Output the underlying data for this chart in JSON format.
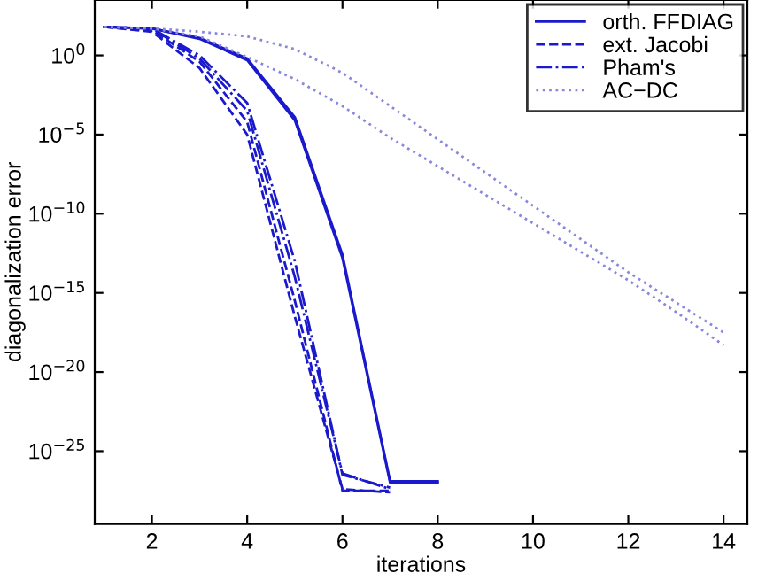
{
  "chart_data": {
    "type": "line",
    "xlabel": "iterations",
    "ylabel": "diagonalization error",
    "log": "y",
    "xlim": [
      0.8,
      14.5
    ],
    "xticks": [
      2,
      4,
      6,
      8,
      10,
      12,
      14
    ],
    "ylim": [
      2.5e-30,
      3160.0
    ],
    "yticks": [
      {
        "value": 1,
        "label": "10$^{0}$"
      },
      {
        "value": 1e-05,
        "label": "10$^{−5}$"
      },
      {
        "value": 1e-10,
        "label": "10$^{−10}$"
      },
      {
        "value": 1e-15,
        "label": "10$^{−15}$"
      },
      {
        "value": 1e-20,
        "label": "10$^{−20}$"
      },
      {
        "value": 1e-25,
        "label": "10$^{−25}$"
      }
    ],
    "grid": false,
    "legend": "top right",
    "marker": "none",
    "series": [
      {
        "name": "orth. FFDIAG",
        "color": "#1a1acc",
        "line_style": "solid",
        "x": [
          1,
          2,
          3,
          4,
          5,
          6,
          7,
          8
        ],
        "values": [
          63.1,
          50.1,
          12.6,
          0.631,
          0.000126,
          2.51e-13,
          1.26e-27,
          1.26e-27
        ]
      },
      {
        "color": "#1a1acc",
        "line_style": "solid",
        "x": [
          1,
          2,
          3,
          4,
          5,
          6,
          7,
          8
        ],
        "values": [
          63.1,
          50.1,
          11.2,
          0.5,
          7.94e-05,
          1.58e-13,
          1e-27,
          1e-27
        ]
      },
      {
        "name": "ext. Jacobi",
        "color": "#1a1acc",
        "line_style": "dashed",
        "x": [
          1,
          2,
          3,
          4,
          5,
          6,
          7
        ],
        "values": [
          63.1,
          39.8,
          0.398,
          6.31e-05,
          3.16e-16,
          3.16e-28,
          3.16e-28
        ]
      },
      {
        "color": "#1a1acc",
        "line_style": "dashed",
        "x": [
          1,
          2,
          3,
          4,
          5,
          6,
          7
        ],
        "values": [
          63.1,
          31.6,
          0.158,
          1e-05,
          3.16e-17,
          3.98e-28,
          2.51e-28
        ]
      },
      {
        "name": "Pham's",
        "color": "#1a1acc",
        "line_style": "dashdot",
        "x": [
          1,
          2,
          3,
          4,
          5,
          6,
          7
        ],
        "values": [
          63.1,
          50.1,
          1.0,
          0.001,
          1e-13,
          3.16e-27,
          5.01e-28
        ]
      },
      {
        "color": "#1a1acc",
        "line_style": "dashdot",
        "x": [
          1,
          2,
          3,
          4,
          5,
          6,
          7
        ],
        "values": [
          63.1,
          50.1,
          0.631,
          0.000316,
          1e-14,
          3.98e-27,
          3.98e-28
        ]
      },
      {
        "name": "AC−DC",
        "color": "#8888dd",
        "line_style": "dotted",
        "x": [
          1,
          2,
          3,
          4,
          5,
          6,
          7,
          8,
          9,
          10,
          11,
          12,
          13,
          14
        ],
        "values": [
          63.1,
          50.1,
          31.6,
          15.8,
          2.51,
          0.0794,
          0.000631,
          5.01e-06,
          3.98e-08,
          3.16e-10,
          2.51e-12,
          2e-14,
          2.51e-16,
          3.16e-18
        ]
      },
      {
        "color": "#8888dd",
        "line_style": "dotted",
        "x": [
          1,
          2,
          3,
          4,
          5,
          6,
          7,
          8,
          9,
          10,
          11,
          12,
          13,
          14
        ],
        "values": [
          63.1,
          50.1,
          15.8,
          0.794,
          0.0316,
          0.000631,
          6.31e-06,
          1e-07,
          1.58e-09,
          2.51e-11,
          3.98e-13,
          6.31e-15,
          6.31e-17,
          5.01e-19
        ]
      }
    ]
  }
}
